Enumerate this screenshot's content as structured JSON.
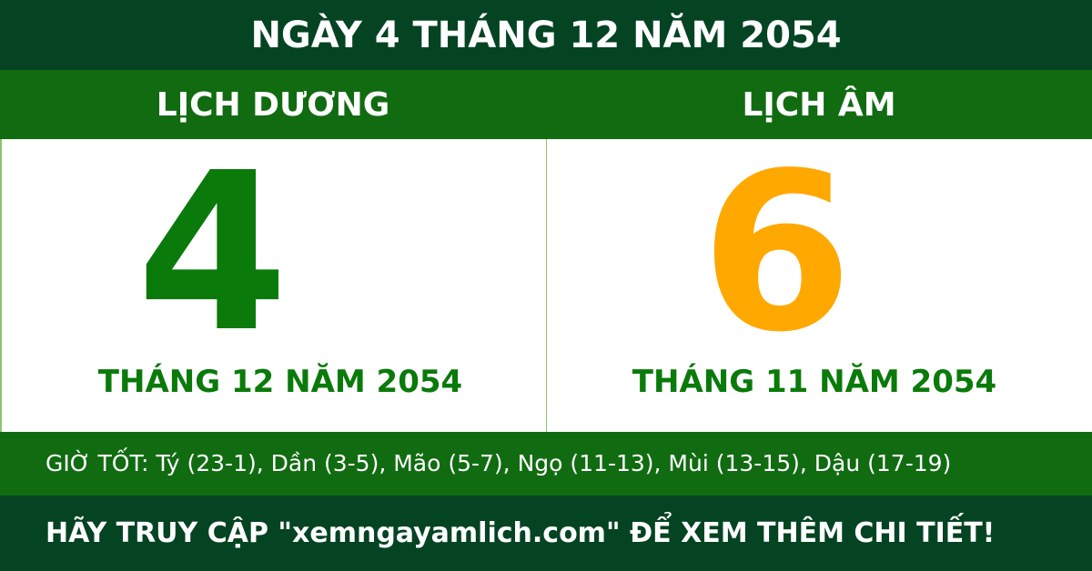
{
  "title": "NGÀY 4 THÁNG 12 NĂM 2054",
  "solar": {
    "label": "LỊCH DƯƠNG",
    "day": "4",
    "month_year": "THÁNG 12 NĂM 2054"
  },
  "lunar": {
    "label": "LỊCH ÂM",
    "day": "6",
    "month_year": "THÁNG 11 NĂM 2054"
  },
  "good_hours": "GIỜ TỐT: Tý (23-1), Dần (3-5), Mão (5-7), Ngọ (11-13), Mùi (13-15), Dậu (17-19)",
  "footer": "HÃY TRUY CẬP \"xemngayamlich.com\" ĐỂ XEM THÊM CHI TIẾT!",
  "colors": {
    "dark_green": "#044422",
    "green": "#116b11",
    "solar_day": "#0a7a0a",
    "lunar_day": "#ffa800"
  }
}
